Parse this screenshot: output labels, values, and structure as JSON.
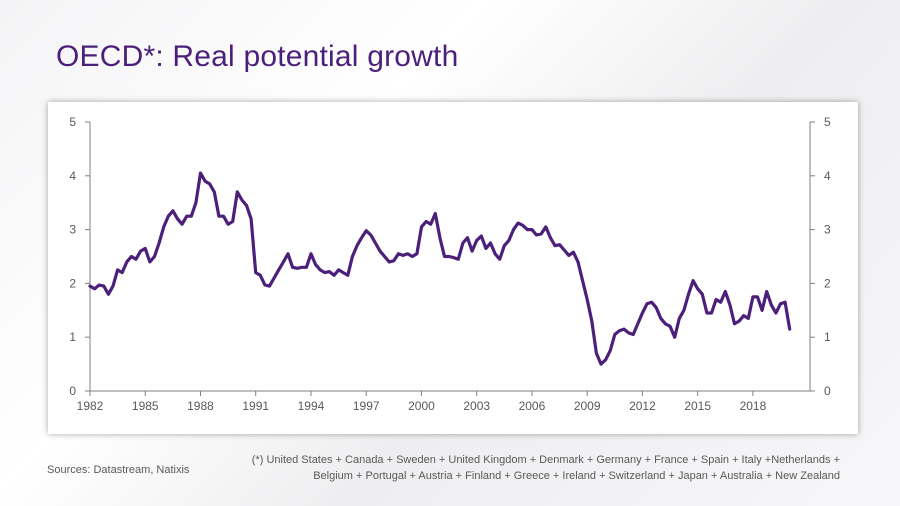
{
  "title": "OECD*: Real potential growth",
  "sources": "Sources: Datastream, Natixis",
  "footnote": {
    "line1": "(*) United States + Canada + Sweden + United Kingdom + Denmark + Germany + France + Spain + Italy +Netherlands +",
    "line2": "Belgium + Portugal + Austria + Finland + Greece + Ireland + Switzerland + Japan + Australia + New Zealand"
  },
  "colors": {
    "line": "#4b1f7a",
    "title": "#4b1f7a",
    "axis": "#7f7f7f",
    "text": "#595959"
  },
  "chart_data": {
    "type": "line",
    "title": "OECD*: Real potential growth",
    "xlabel": "",
    "ylabel": "",
    "xlim": [
      1982,
      2021.1
    ],
    "ylim": [
      0,
      5
    ],
    "yticks": [
      0,
      1,
      2,
      3,
      4,
      5
    ],
    "xticks": [
      "1982",
      "1985",
      "1988",
      "1991",
      "1994",
      "1997",
      "2000",
      "2003",
      "2006",
      "2009",
      "2012",
      "2015",
      "2018"
    ],
    "grid": false,
    "secondary_axis": true,
    "series": [
      {
        "name": "Real potential growth",
        "x": [
          1982.0,
          1982.25,
          1982.5,
          1982.75,
          1983.0,
          1983.25,
          1983.5,
          1983.75,
          1984.0,
          1984.25,
          1984.5,
          1984.75,
          1985.0,
          1985.25,
          1985.5,
          1985.75,
          1986.0,
          1986.25,
          1986.5,
          1986.75,
          1987.0,
          1987.25,
          1987.5,
          1987.75,
          1988.0,
          1988.25,
          1988.5,
          1988.75,
          1989.0,
          1989.25,
          1989.5,
          1989.75,
          1990.0,
          1990.25,
          1990.5,
          1990.75,
          1991.0,
          1991.25,
          1991.5,
          1991.75,
          1992.0,
          1992.25,
          1992.5,
          1992.75,
          1993.0,
          1993.25,
          1993.5,
          1993.75,
          1994.0,
          1994.25,
          1994.5,
          1994.75,
          1995.0,
          1995.25,
          1995.5,
          1995.75,
          1996.0,
          1996.25,
          1996.5,
          1996.75,
          1997.0,
          1997.25,
          1997.5,
          1997.75,
          1998.0,
          1998.25,
          1998.5,
          1998.75,
          1999.0,
          1999.25,
          1999.5,
          1999.75,
          2000.0,
          2000.25,
          2000.5,
          2000.75,
          2001.0,
          2001.25,
          2001.5,
          2001.75,
          2002.0,
          2002.25,
          2002.5,
          2002.75,
          2003.0,
          2003.25,
          2003.5,
          2003.75,
          2004.0,
          2004.25,
          2004.5,
          2004.75,
          2005.0,
          2005.25,
          2005.5,
          2005.75,
          2006.0,
          2006.25,
          2006.5,
          2006.75,
          2007.0,
          2007.25,
          2007.5,
          2007.75,
          2008.0,
          2008.25,
          2008.5,
          2008.75,
          2009.0,
          2009.25,
          2009.5,
          2009.75,
          2010.0,
          2010.25,
          2010.5,
          2010.75,
          2011.0,
          2011.25,
          2011.5,
          2011.75,
          2012.0,
          2012.25,
          2012.5,
          2012.75,
          2013.0,
          2013.25,
          2013.5,
          2013.75,
          2014.0,
          2014.25,
          2014.5,
          2014.75,
          2015.0,
          2015.25,
          2015.5,
          2015.75,
          2016.0,
          2016.25,
          2016.5,
          2016.75,
          2017.0,
          2017.25,
          2017.5,
          2017.75,
          2018.0,
          2018.25,
          2018.5,
          2018.75,
          2019.0,
          2019.25,
          2019.5,
          2019.75,
          2020.0
        ],
        "values": [
          1.95,
          1.9,
          1.97,
          1.95,
          1.8,
          1.95,
          2.25,
          2.2,
          2.4,
          2.5,
          2.45,
          2.6,
          2.65,
          2.4,
          2.5,
          2.75,
          3.05,
          3.25,
          3.35,
          3.2,
          3.1,
          3.25,
          3.25,
          3.5,
          4.05,
          3.9,
          3.85,
          3.7,
          3.25,
          3.25,
          3.1,
          3.15,
          3.7,
          3.55,
          3.45,
          3.2,
          2.2,
          2.15,
          1.97,
          1.95,
          2.1,
          2.25,
          2.4,
          2.55,
          2.3,
          2.28,
          2.3,
          2.3,
          2.55,
          2.35,
          2.25,
          2.2,
          2.22,
          2.15,
          2.25,
          2.2,
          2.15,
          2.5,
          2.7,
          2.85,
          2.98,
          2.9,
          2.75,
          2.6,
          2.5,
          2.4,
          2.42,
          2.55,
          2.52,
          2.55,
          2.5,
          2.55,
          3.05,
          3.15,
          3.1,
          3.3,
          2.85,
          2.5,
          2.5,
          2.48,
          2.45,
          2.75,
          2.85,
          2.6,
          2.8,
          2.88,
          2.65,
          2.75,
          2.55,
          2.45,
          2.7,
          2.8,
          3.0,
          3.12,
          3.08,
          3.0,
          3.0,
          2.9,
          2.92,
          3.05,
          2.85,
          2.7,
          2.72,
          2.62,
          2.52,
          2.58,
          2.4,
          2.05,
          1.7,
          1.3,
          0.7,
          0.5,
          0.58,
          0.75,
          1.05,
          1.12,
          1.15,
          1.08,
          1.05,
          1.25,
          1.45,
          1.62,
          1.65,
          1.55,
          1.35,
          1.25,
          1.2,
          1.0,
          1.35,
          1.5,
          1.8,
          2.05,
          1.9,
          1.8,
          1.45,
          1.45,
          1.7,
          1.65,
          1.85,
          1.6,
          1.25,
          1.3,
          1.4,
          1.35,
          1.75,
          1.75,
          1.5,
          1.85,
          1.6,
          1.45,
          1.62,
          1.65,
          1.15
        ]
      }
    ]
  }
}
